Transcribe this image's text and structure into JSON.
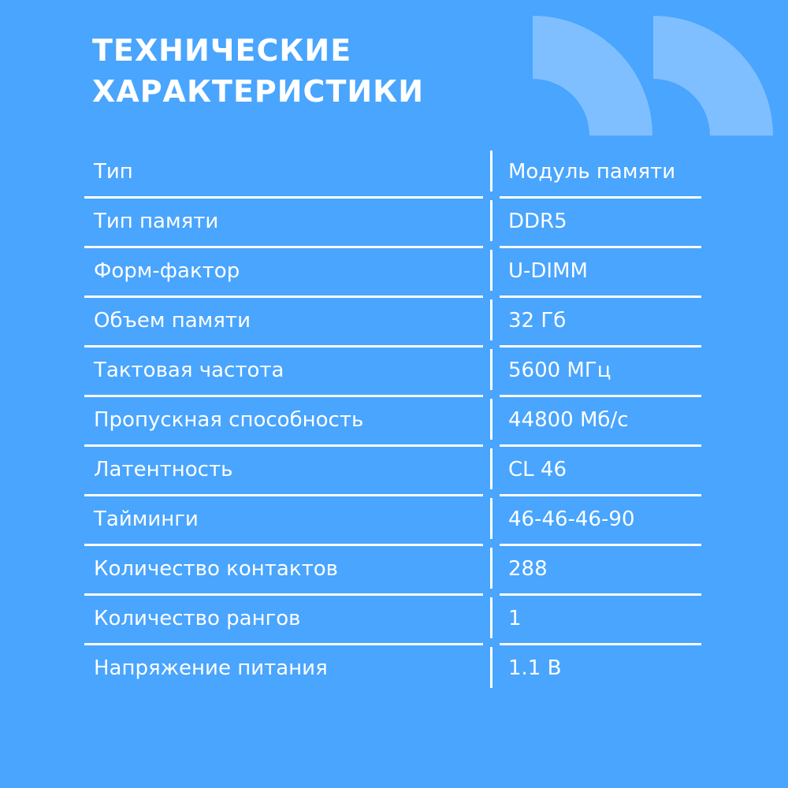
{
  "title": {
    "line1": "ТЕХНИЧЕСКИЕ",
    "line2": "ХАРАКТЕРИСТИКИ"
  },
  "colors": {
    "background": "#49a5fe",
    "quote_mark": "#80bfff",
    "text": "#ffffff"
  },
  "decoration": "closing-quote-icon",
  "specs": [
    {
      "label": "Тип",
      "value": "Модуль памяти"
    },
    {
      "label": "Тип памяти",
      "value": "DDR5"
    },
    {
      "label": "Форм-фактор",
      "value": "U-DIMM"
    },
    {
      "label": "Объем памяти",
      "value": "32 Гб"
    },
    {
      "label": "Тактовая частота",
      "value": "5600 МГц"
    },
    {
      "label": "Пропускная способность",
      "value": "44800 Мб/с"
    },
    {
      "label": "Латентность",
      "value": "CL 46"
    },
    {
      "label": "Тайминги",
      "value": "46-46-46-90"
    },
    {
      "label": "Количество контактов",
      "value": "288"
    },
    {
      "label": "Количество рангов",
      "value": "1"
    },
    {
      "label": "Напряжение питания",
      "value": "1.1 В"
    }
  ]
}
